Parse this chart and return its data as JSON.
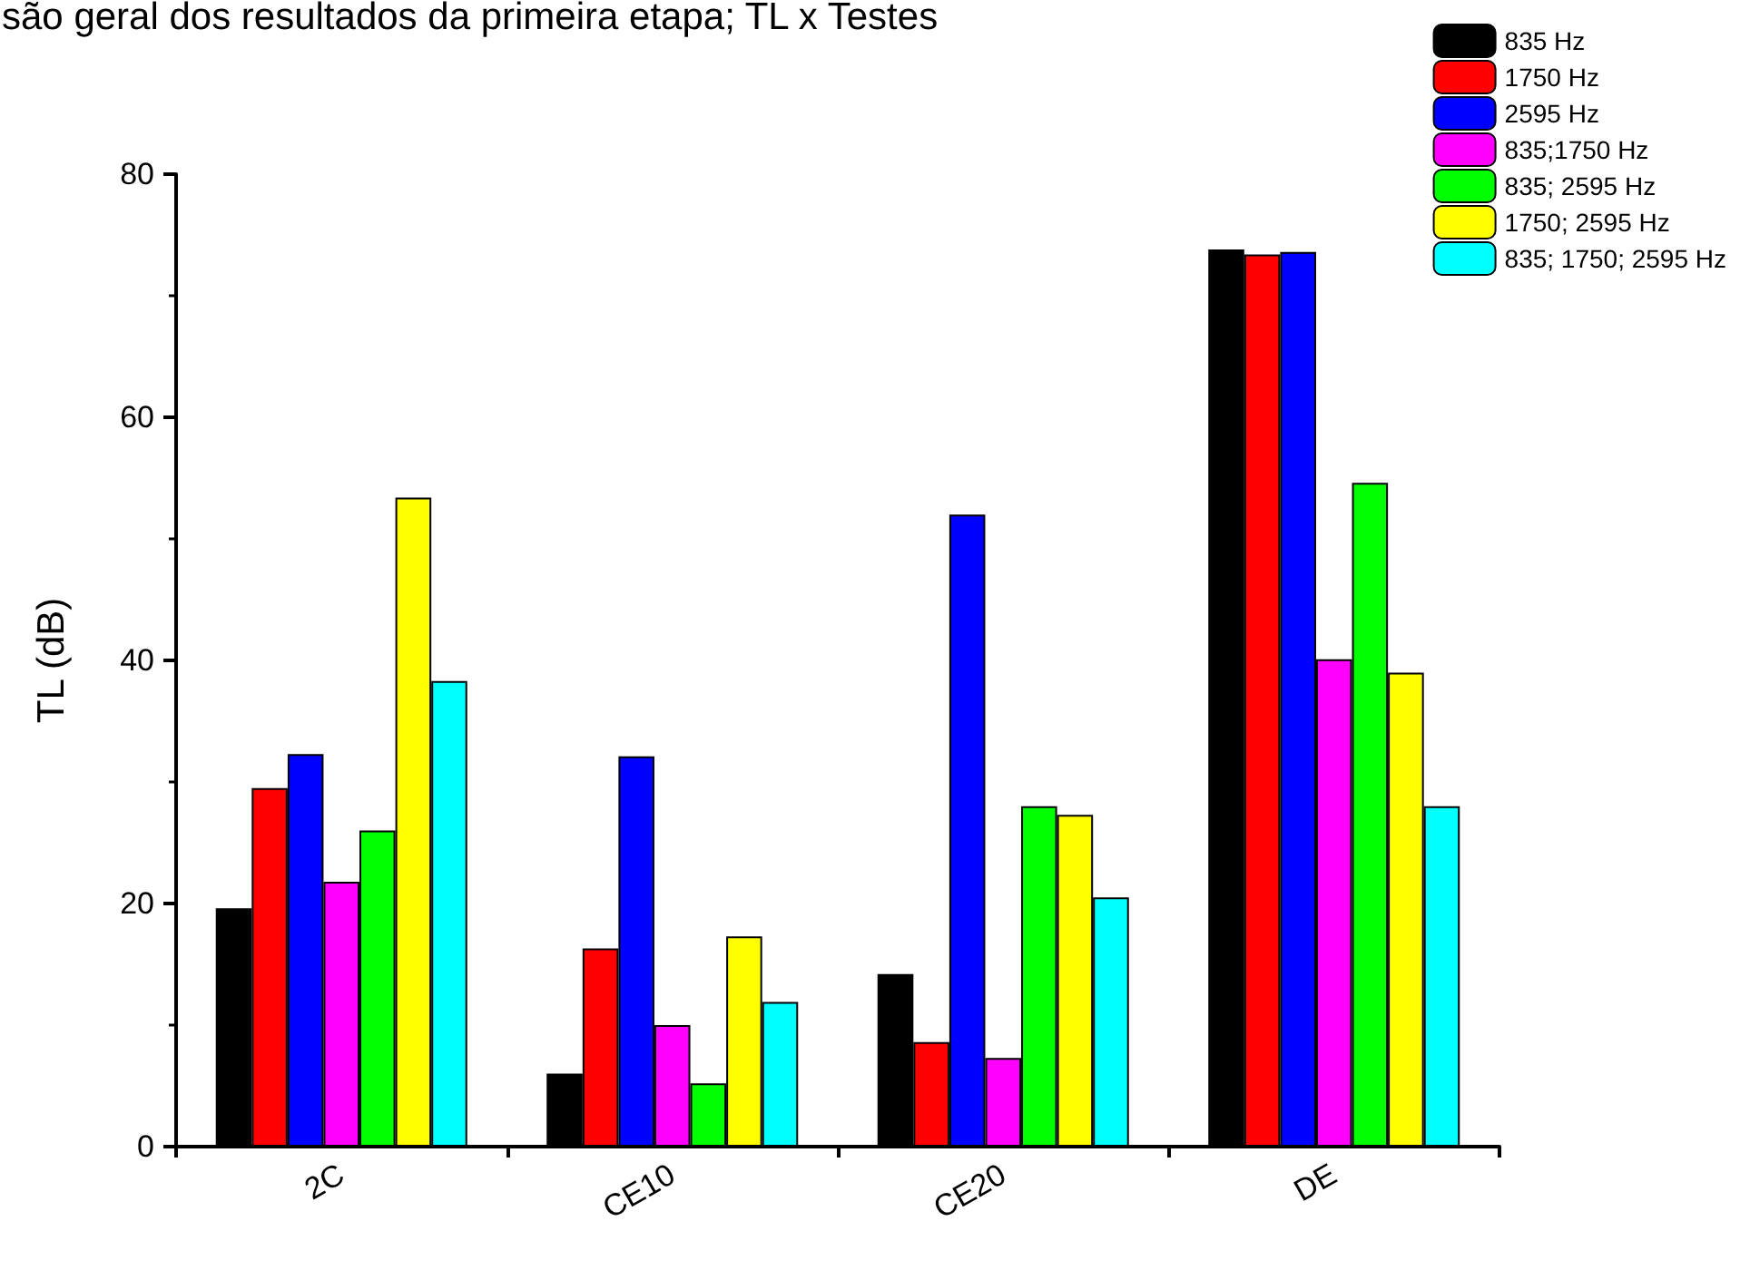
{
  "chart_data": {
    "type": "bar",
    "title": "são geral dos resultados da primeira etapa; TL x Testes",
    "ylabel": "TL (dB)",
    "categories": [
      "2C",
      "CE10",
      "CE20",
      "DE"
    ],
    "series": [
      {
        "name": "835 Hz",
        "color": "#000000",
        "values": [
          19.6,
          6,
          14.2,
          73.8
        ]
      },
      {
        "name": "1750 Hz",
        "color": "#ff0000",
        "values": [
          29.5,
          16.3,
          8.6,
          73.4
        ]
      },
      {
        "name": "2595 Hz",
        "color": "#0000ff",
        "values": [
          32.3,
          32.1,
          52,
          73.6
        ]
      },
      {
        "name": "835;1750 Hz",
        "color": "#ff00ff",
        "values": [
          21.8,
          10,
          7.3,
          40.1
        ]
      },
      {
        "name": "835; 2595 Hz",
        "color": "#00ff00",
        "values": [
          26,
          5.2,
          28,
          54.6
        ]
      },
      {
        "name": "1750; 2595 Hz",
        "color": "#ffff00",
        "values": [
          53.4,
          17.3,
          27.3,
          39
        ]
      },
      {
        "name": "835; 1750; 2595 Hz",
        "color": "#00ffff",
        "values": [
          38.3,
          11.9,
          20.5,
          28
        ]
      }
    ],
    "ylim": [
      0,
      80
    ],
    "yticks": [
      0,
      20,
      40,
      60,
      80
    ],
    "grid": false,
    "legend": "top right"
  }
}
